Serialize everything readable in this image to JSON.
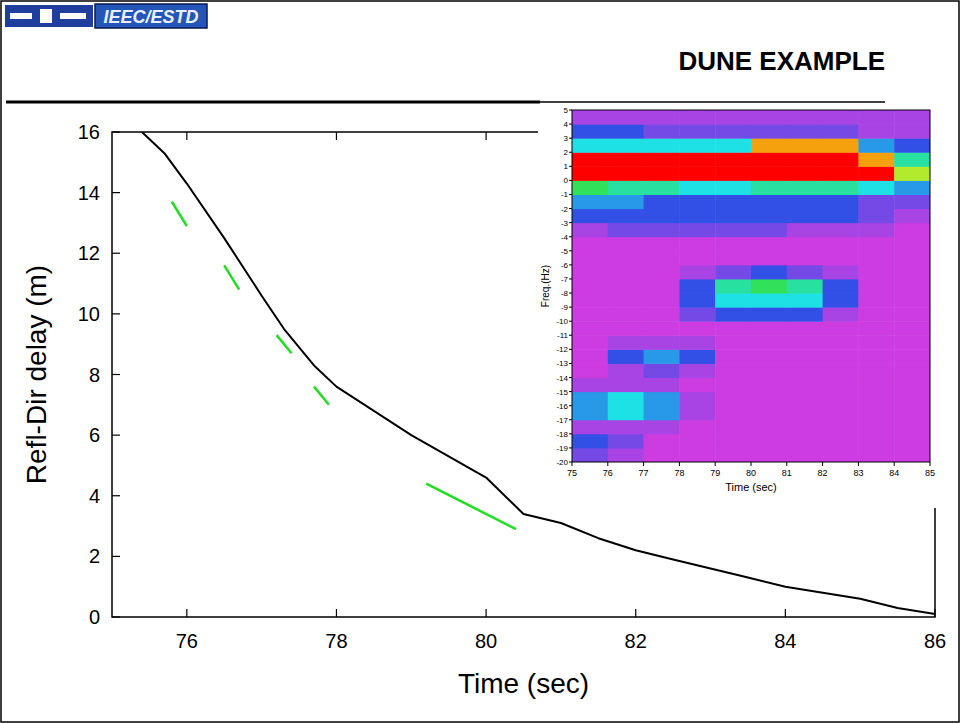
{
  "header": {
    "logo": "IEEC/ESTD",
    "title": "DUNE EXAMPLE"
  },
  "chart_data": [
    {
      "type": "line",
      "xlabel": "Time (sec)",
      "ylabel": "Refl-Dir delay (m)",
      "xlim": [
        75,
        86
      ],
      "ylim": [
        0,
        16
      ],
      "xticks": [
        76,
        78,
        80,
        82,
        84,
        86
      ],
      "yticks": [
        0,
        2,
        4,
        6,
        8,
        10,
        12,
        14,
        16
      ],
      "series": [
        {
          "color": "#000000",
          "line_style": "solid",
          "x": [
            75.4,
            75.7,
            76,
            76.5,
            77,
            77.3,
            77.7,
            78,
            78.5,
            79,
            79.5,
            80,
            80.5,
            81,
            81.5,
            82,
            82.5,
            83,
            83.5,
            84,
            84.5,
            85,
            85.5,
            86
          ],
          "values": [
            16,
            15.3,
            14.3,
            12.5,
            10.6,
            9.5,
            8.3,
            7.6,
            6.8,
            6.0,
            5.3,
            4.6,
            3.4,
            3.1,
            2.6,
            2.2,
            1.9,
            1.6,
            1.3,
            1.0,
            0.8,
            0.6,
            0.3,
            0.1
          ]
        },
        {
          "color": "#22dd22",
          "line_style": "solid",
          "x": [
            75.8,
            76.0,
            null,
            76.5,
            76.7,
            null,
            77.2,
            77.4,
            null,
            77.7,
            77.9,
            null,
            79.2,
            80.4
          ],
          "values": [
            13.7,
            12.9,
            null,
            11.6,
            10.8,
            null,
            9.3,
            8.7,
            null,
            7.6,
            7.0,
            null,
            4.4,
            2.9
          ]
        }
      ]
    },
    {
      "type": "heatmap",
      "xlabel": "Time (sec)",
      "ylabel": "Freq.(Hz)",
      "xlim": [
        75,
        85
      ],
      "ylim": [
        -20,
        5
      ],
      "xticks": [
        75,
        76,
        77,
        78,
        79,
        80,
        81,
        82,
        83,
        84,
        85
      ],
      "yticks": [
        -20,
        -19,
        -18,
        -17,
        -16,
        -15,
        -14,
        -13,
        -12,
        -11,
        -10,
        -9,
        -8,
        -7,
        -6,
        -5,
        -4,
        -3,
        -2,
        -1,
        0,
        1,
        2,
        3,
        4,
        5
      ],
      "x_bins": [
        75,
        76,
        77,
        78,
        79,
        80,
        81,
        82,
        83,
        84,
        85
      ],
      "y_bins": [
        -20,
        -19,
        -18,
        -17,
        -16,
        -15,
        -14,
        -13,
        -12,
        -11,
        -10,
        -9,
        -8,
        -7,
        -6,
        -5,
        -4,
        -3,
        -2,
        -1,
        0,
        1,
        2,
        3,
        4,
        5
      ],
      "zlim": [
        0,
        10
      ],
      "cells": [
        [
          2,
          1,
          0,
          0,
          0,
          0,
          0,
          0,
          0,
          0
        ],
        [
          3,
          2,
          0,
          0,
          0,
          0,
          0,
          0,
          0,
          0
        ],
        [
          1,
          1,
          1,
          0,
          0,
          0,
          0,
          0,
          0,
          0
        ],
        [
          4,
          5,
          4,
          1,
          0,
          0,
          0,
          0,
          0,
          0
        ],
        [
          4,
          5,
          4,
          1,
          0,
          0,
          0,
          0,
          0,
          0
        ],
        [
          1,
          1,
          1,
          0,
          0,
          0,
          0,
          0,
          0,
          0
        ],
        [
          0,
          1,
          2,
          1,
          0,
          0,
          0,
          0,
          0,
          0
        ],
        [
          0,
          3,
          4,
          3,
          0,
          0,
          0,
          0,
          0,
          0
        ],
        [
          0,
          1,
          1,
          1,
          0,
          0,
          0,
          0,
          0,
          0
        ],
        [
          0,
          0,
          0,
          0,
          0,
          0,
          0,
          0,
          0,
          0
        ],
        [
          0,
          0,
          0,
          2,
          3,
          3,
          3,
          1,
          0,
          0
        ],
        [
          0,
          0,
          0,
          3,
          5,
          5,
          5,
          3,
          0,
          0
        ],
        [
          0,
          0,
          0,
          3,
          6,
          7,
          6,
          3,
          0,
          0
        ],
        [
          0,
          0,
          0,
          1,
          2,
          3,
          2,
          1,
          0,
          0
        ],
        [
          0,
          0,
          0,
          0,
          0,
          0,
          0,
          0,
          0,
          0
        ],
        [
          0,
          0,
          0,
          0,
          0,
          0,
          0,
          0,
          0,
          0
        ],
        [
          1,
          2,
          2,
          2,
          2,
          2,
          1,
          1,
          1,
          0
        ],
        [
          3,
          3,
          3,
          3,
          3,
          3,
          3,
          3,
          2,
          1
        ],
        [
          4,
          4,
          3,
          3,
          3,
          3,
          3,
          3,
          2,
          2
        ],
        [
          7,
          6,
          6,
          5,
          5,
          6,
          6,
          6,
          5,
          4
        ],
        [
          10,
          10,
          10,
          10,
          10,
          10,
          10,
          10,
          10,
          8
        ],
        [
          10,
          10,
          10,
          10,
          10,
          10,
          10,
          10,
          9,
          6
        ],
        [
          5,
          5,
          5,
          5,
          5,
          9,
          9,
          9,
          4,
          3
        ],
        [
          3,
          3,
          2,
          2,
          2,
          2,
          2,
          2,
          1,
          1
        ],
        [
          1,
          1,
          1,
          1,
          1,
          1,
          1,
          1,
          1,
          1
        ]
      ]
    }
  ]
}
